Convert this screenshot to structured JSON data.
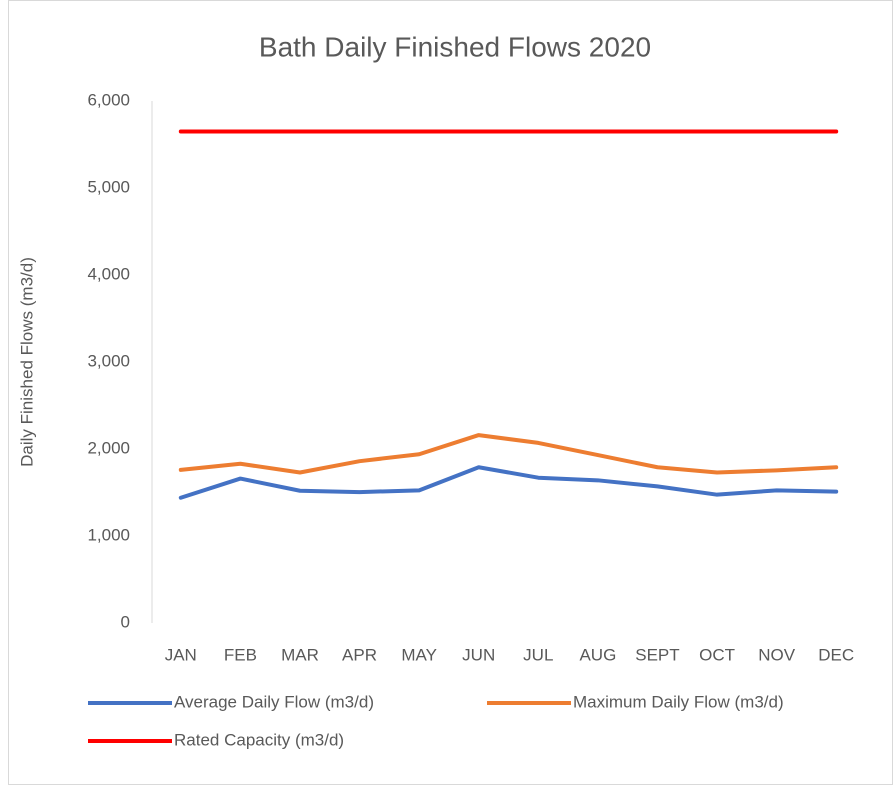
{
  "chart_data": {
    "type": "line",
    "title": "Bath Daily Finished Flows 2020",
    "y_label": "Daily Finished Flows (m3/d)",
    "categories": [
      "JAN",
      "FEB",
      "MAR",
      "APR",
      "MAY",
      "JUN",
      "JUL",
      "AUG",
      "SEPT",
      "OCT",
      "NOV",
      "DEC"
    ],
    "series": [
      {
        "name": "Average Daily Flow (m3/d)",
        "color": "#4472c4",
        "values": [
          1440,
          1660,
          1520,
          1505,
          1525,
          1790,
          1670,
          1640,
          1570,
          1475,
          1525,
          1510
        ]
      },
      {
        "name": "Maximum Daily Flow (m3/d)",
        "color": "#ed7d31",
        "values": [
          1760,
          1830,
          1730,
          1860,
          1940,
          2160,
          2070,
          1930,
          1790,
          1730,
          1755,
          1790
        ]
      },
      {
        "name": "Rated Capacity (m3/d)",
        "color": "#ff0000",
        "values": [
          5650,
          5650,
          5650,
          5650,
          5650,
          5650,
          5650,
          5650,
          5650,
          5650,
          5650,
          5650
        ]
      }
    ],
    "ylim": [
      0,
      6000
    ],
    "yticks": [
      0,
      {
        "value": 1000,
        "label": "1,000"
      },
      {
        "value": 2000,
        "label": "2,000"
      },
      {
        "value": 3000,
        "label": "3,000"
      },
      {
        "value": 4000,
        "label": "4,000"
      },
      {
        "value": 5000,
        "label": "5,000"
      },
      {
        "value": 6000,
        "label": "6,000"
      }
    ],
    "grid": false,
    "legend": "bottom"
  }
}
